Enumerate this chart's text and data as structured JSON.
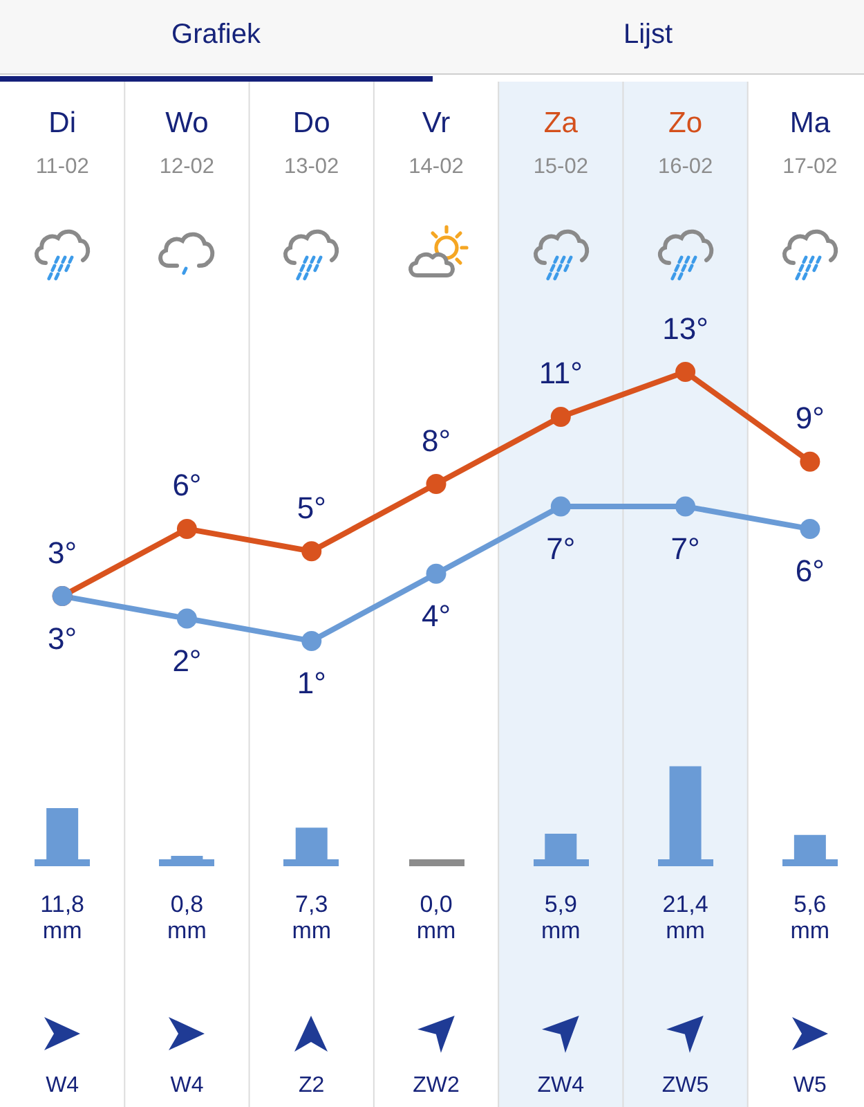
{
  "chart_data": [
    {
      "type": "other",
      "annotations": [
        "Grafiek",
        "Lijst"
      ]
    },
    {
      "type": "line",
      "categories": [
        "Di",
        "Wo",
        "Do",
        "Vr",
        "Za",
        "Zo",
        "Ma"
      ],
      "annotations": [
        "11-02",
        "12-02",
        "13-02",
        "14-02",
        "15-02",
        "16-02",
        "17-02"
      ],
      "series": [
        {
          "color": "#d9531e",
          "values": [
            3,
            6,
            5,
            8,
            11,
            13,
            9
          ],
          "value_labels": [
            "3°",
            "6°",
            "5°",
            "8°",
            "11°",
            "13°",
            "9°"
          ]
        },
        {
          "color": "#6a9bd6",
          "values": [
            3,
            2,
            1,
            4,
            7,
            7,
            6
          ],
          "value_labels": [
            "3°",
            "2°",
            "1°",
            "4°",
            "7°",
            "7°",
            "6°"
          ]
        }
      ],
      "grid": "x",
      "tick_labels": "x",
      "marker": "circle",
      "bands": [
        {
          "axis": "x",
          "from": "Za",
          "to": "Zo",
          "color": "#eaf2fa"
        }
      ]
    },
    {
      "type": "bar",
      "categories": [
        "Di",
        "Wo",
        "Do",
        "Vr",
        "Za",
        "Zo",
        "Ma"
      ],
      "values": [
        11.8,
        0.8,
        7.3,
        0.0,
        5.9,
        21.4,
        5.6
      ],
      "value_labels": [
        "11,8 mm",
        "0,8 mm",
        "7,3 mm",
        "0,0 mm",
        "5,9 mm",
        "21,4 mm",
        "5,6 mm"
      ],
      "color": "#6a9bd6",
      "grid": "x",
      "tick_labels": false,
      "bands": [
        {
          "axis": "x",
          "from": "Za",
          "to": "Zo",
          "color": "#eaf2fa"
        }
      ]
    },
    {
      "type": "other",
      "annotations": [
        "W4",
        "W4",
        "Z2",
        "ZW2",
        "ZW4",
        "ZW5",
        "W5"
      ]
    }
  ]
}
